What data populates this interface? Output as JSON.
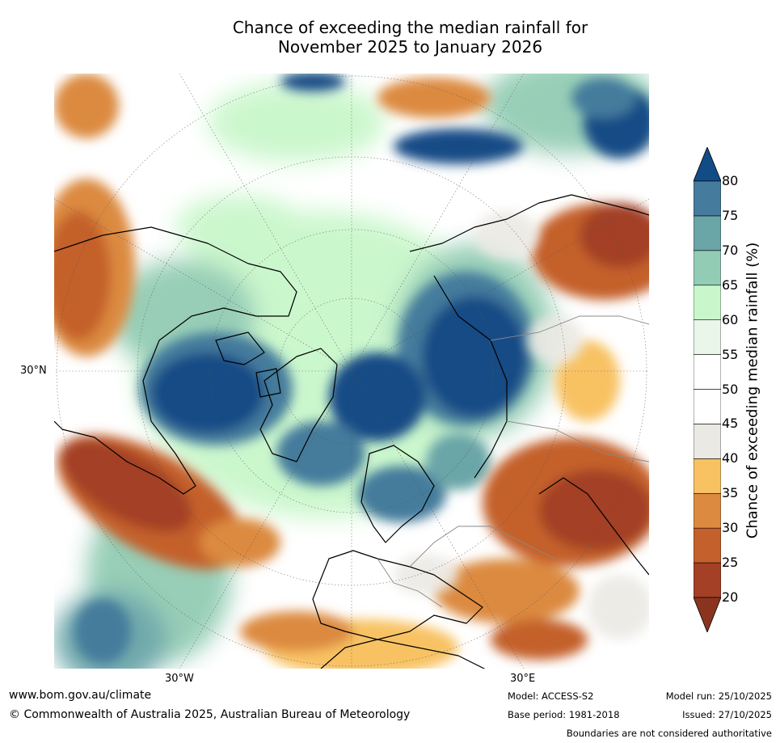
{
  "title": {
    "line1": "Chance of exceeding the median rainfall for",
    "line2": "November 2025 to January 2026"
  },
  "map": {
    "grid_labels": {
      "lat_30n": "30°N",
      "lon_30w": "30°W",
      "lon_30e": "30°E"
    }
  },
  "colorbar": {
    "label": "Chance of exceeding median rainfall (%)",
    "ticks": [
      "20",
      "25",
      "30",
      "35",
      "40",
      "45",
      "50",
      "55",
      "60",
      "65",
      "70",
      "75",
      "80"
    ],
    "colors": [
      "#a34025",
      "#c4602c",
      "#dc8a40",
      "#f8c263",
      "#ebe9e4",
      "#ffffff",
      "#ffffff",
      "#eaf6e9",
      "#c9f7cb",
      "#93ccb4",
      "#6aa5a8",
      "#457b9c"
    ],
    "under_color": "#8a3420",
    "over_color": "#124c86"
  },
  "footer": {
    "url": "www.bom.gov.au/climate",
    "copyright": "© Commonwealth of Australia 2025, Australian Bureau of Meteorology",
    "model": "Model: ACCESS-S2",
    "base_period": "Base period: 1981-2018",
    "model_run": "Model run: 25/10/2025",
    "issued": "Issued: 27/10/2025",
    "disclaimer": "Boundaries are not considered authoritative"
  }
}
